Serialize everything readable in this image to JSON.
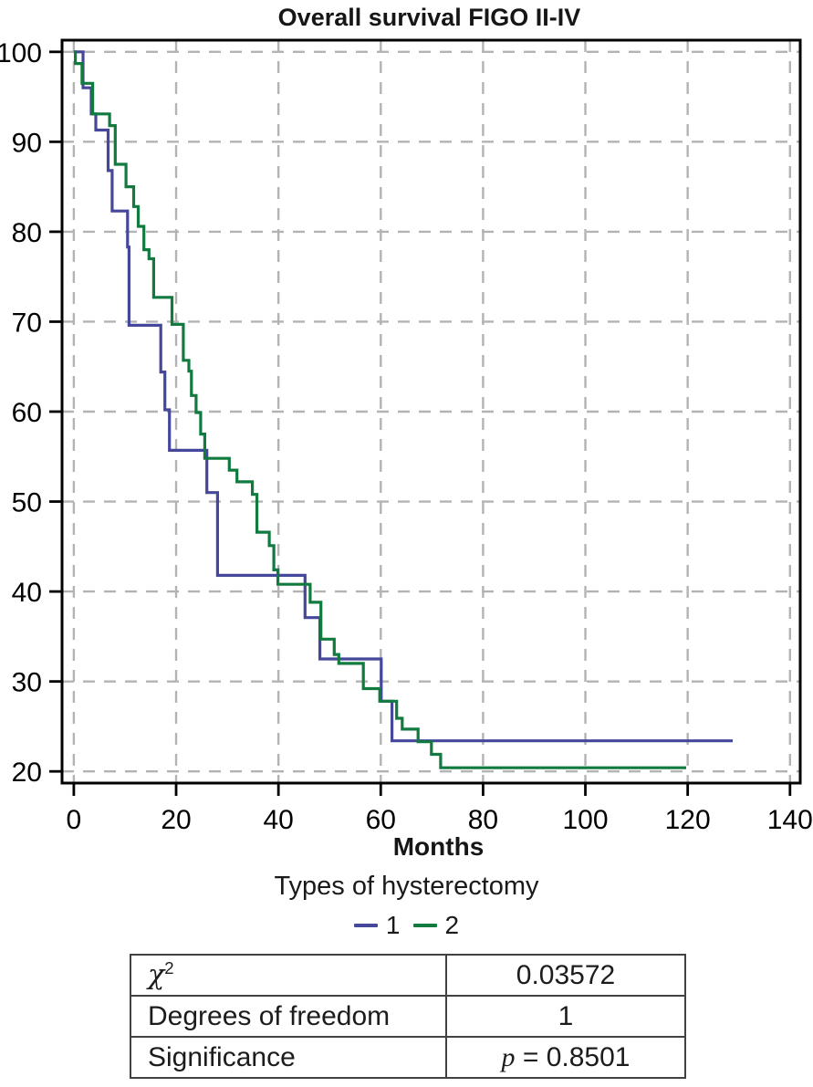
{
  "title": "Overall survival FIGO II-IV",
  "axes": {
    "x_label": "Months",
    "x_ticks": [
      0,
      20,
      40,
      60,
      80,
      100,
      120,
      140
    ],
    "y_ticks": [
      20,
      30,
      40,
      50,
      60,
      70,
      80,
      90,
      100
    ]
  },
  "legend": {
    "title": "Types of hysterectomy",
    "items": [
      {
        "label": "1",
        "color": "#45479b"
      },
      {
        "label": "2",
        "color": "#117a3e"
      }
    ]
  },
  "chart_data": {
    "type": "line",
    "subtype": "kaplan_meier_step",
    "title": "Overall survival FIGO II-IV",
    "xlabel": "Months",
    "ylabel": "",
    "xlim": [
      -2.3,
      142.0
    ],
    "ylim": [
      18.7,
      101.3
    ],
    "x_ticks": [
      0,
      20,
      40,
      60,
      80,
      100,
      120,
      140
    ],
    "y_ticks": [
      20,
      30,
      40,
      50,
      60,
      70,
      80,
      90,
      100
    ],
    "grid": "dashed-both-axes",
    "legend_position": "bottom",
    "series": [
      {
        "name": "1",
        "color": "#45479b",
        "end_time": 128.8,
        "steps": [
          [
            0,
            100
          ],
          [
            1.8,
            96.0
          ],
          [
            3.4,
            93.1
          ],
          [
            4.3,
            91.3
          ],
          [
            6.7,
            86.8
          ],
          [
            7.5,
            82.3
          ],
          [
            10.5,
            78.3
          ],
          [
            10.8,
            69.6
          ],
          [
            17.0,
            64.4
          ],
          [
            17.8,
            60.2
          ],
          [
            18.7,
            55.7
          ],
          [
            26.0,
            51.0
          ],
          [
            28.1,
            41.8
          ],
          [
            45.2,
            37.1
          ],
          [
            48.1,
            32.5
          ],
          [
            60.1,
            27.8
          ],
          [
            62.2,
            23.4
          ]
        ]
      },
      {
        "name": "2",
        "color": "#117a3e",
        "end_time": 119.7,
        "steps": [
          [
            0,
            100
          ],
          [
            0.3,
            98.7
          ],
          [
            1.6,
            96.5
          ],
          [
            3.7,
            93.1
          ],
          [
            7.0,
            91.8
          ],
          [
            8.1,
            87.5
          ],
          [
            10.2,
            85.0
          ],
          [
            11.7,
            82.8
          ],
          [
            12.6,
            80.6
          ],
          [
            13.7,
            78.0
          ],
          [
            14.7,
            77.0
          ],
          [
            15.6,
            72.7
          ],
          [
            19.2,
            69.7
          ],
          [
            21.4,
            65.7
          ],
          [
            22.5,
            64.5
          ],
          [
            23.0,
            61.8
          ],
          [
            23.9,
            59.9
          ],
          [
            24.8,
            57.5
          ],
          [
            25.6,
            54.8
          ],
          [
            30.4,
            53.5
          ],
          [
            31.9,
            52.2
          ],
          [
            34.9,
            50.8
          ],
          [
            35.8,
            46.6
          ],
          [
            38.2,
            45.1
          ],
          [
            39.1,
            42.4
          ],
          [
            39.9,
            40.8
          ],
          [
            46.2,
            38.8
          ],
          [
            48.3,
            34.7
          ],
          [
            50.9,
            33.0
          ],
          [
            51.8,
            32.0
          ],
          [
            56.6,
            29.2
          ],
          [
            59.8,
            27.8
          ],
          [
            63.1,
            25.9
          ],
          [
            64.2,
            24.7
          ],
          [
            67.3,
            23.3
          ],
          [
            69.9,
            21.9
          ],
          [
            71.7,
            20.4
          ]
        ]
      }
    ]
  },
  "stats_table": {
    "rows": [
      {
        "label": "χ",
        "label_sup": "2",
        "value": "0.03572"
      },
      {
        "label": "Degrees of freedom",
        "value": "1"
      },
      {
        "label": "Significance",
        "value_italic": "p",
        "value": " = 0.8501"
      }
    ]
  },
  "colors": {
    "grid": "#b3b3b3",
    "axis": "#000000",
    "table_border": "#414141",
    "blue_series": "#45479b",
    "green_series": "#117a3e"
  }
}
